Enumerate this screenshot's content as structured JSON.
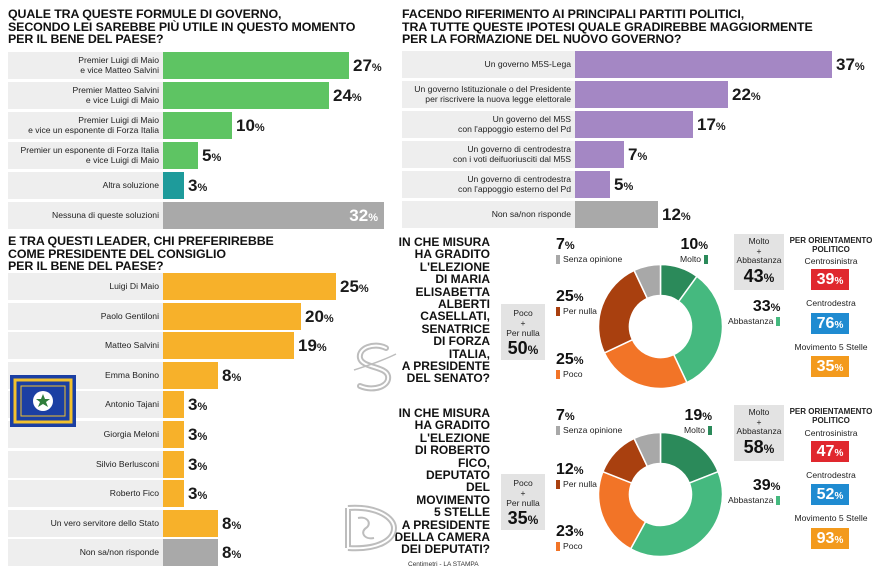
{
  "colors": {
    "green": "#5ec463",
    "teal": "#1e9b9b",
    "gray": "#a9a9a9",
    "purple": "#a487c4",
    "orange": "#f7b12a",
    "row_bg": "#eeeeee",
    "donut_dark_green": "#2b8a5a",
    "donut_green": "#45b97f",
    "donut_brown": "#a9400f",
    "donut_orange": "#f27427",
    "donut_gray": "#a8a8a8",
    "centrosinistra": "#e0282e",
    "centrodestra": "#1f8bd1",
    "m5s": "#f39a1d"
  },
  "chart_data": [
    {
      "type": "bar",
      "orientation": "horizontal",
      "title": "QUALE TRA QUESTE FORMULE DI GOVERNO, SECONDO LEI SAREBBE PIÙ UTILE IN QUESTO MOMENTO PER IL BENE DEL PAESE?",
      "title_lines": [
        "QUALE TRA QUESTE FORMULE DI GOVERNO,",
        "SECONDO LEI SAREBBE PIÙ UTILE IN QUESTO MOMENTO",
        "PER IL BENE DEL PAESE?"
      ],
      "unit": "%",
      "xlim": [
        0,
        40
      ],
      "categories": [
        "Premier Luigi di Maio\ne vice Matteo Salvini",
        "Premier Matteo Salvini\ne vice Luigi di Maio",
        "Premier Luigi di Maio\ne vice un esponente di Forza Italia",
        "Premier un esponente di Forza Italia\ne vice Luigi di Maio",
        "Altra soluzione",
        "Nessuna di queste soluzioni"
      ],
      "values": [
        27,
        24,
        10,
        5,
        3,
        32
      ],
      "bar_colors": [
        "green",
        "green",
        "green",
        "green",
        "teal",
        "gray"
      ]
    },
    {
      "type": "bar",
      "orientation": "horizontal",
      "title": "FACENDO RIFERIMENTO AI PRINCIPALI PARTITI POLITICI, TRA TUTTE QUESTE IPOTESI QUALE GRADIREBBE MAGGIORMENTE PER LA FORMAZIONE DEL NUOVO GOVERNO?",
      "title_lines": [
        "FACENDO RIFERIMENTO AI PRINCIPALI PARTITI POLITICI,",
        "TRA TUTTE QUESTE IPOTESI QUALE GRADIREBBE MAGGIORMENTE",
        "PER LA FORMAZIONE DEL NUOVO GOVERNO?"
      ],
      "unit": "%",
      "xlim": [
        0,
        40
      ],
      "categories": [
        "Un governo M5S-Lega",
        "Un governo Istituzionale o del Presidente\nper riscrivere la nuova legge elettorale",
        "Un governo del M5S\ncon l'appoggio esterno del Pd",
        "Un governo di centrodestra\ncon i voti deifuoriusciti dal M5S",
        "Un governo di centrodestra\ncon l'appoggio esterno del Pd",
        "Non sa/non risponde"
      ],
      "values": [
        37,
        22,
        17,
        7,
        5,
        12
      ],
      "bar_colors": [
        "purple",
        "purple",
        "purple",
        "purple",
        "purple",
        "gray"
      ]
    },
    {
      "type": "bar",
      "orientation": "horizontal",
      "title": "E TRA QUESTI LEADER, CHI PREFERIREBBE COME PRESIDENTE DEL CONSIGLIO PER IL BENE DEL PAESE?",
      "title_lines": [
        "E TRA QUESTI LEADER, CHI PREFERIREBBE",
        "COME PRESIDENTE DEL CONSIGLIO",
        "PER IL BENE DEL PAESE?"
      ],
      "unit": "%",
      "xlim": [
        0,
        40
      ],
      "categories": [
        "Luigi Di Maio",
        "Paolo Gentiloni",
        "Matteo Salvini",
        "Emma Bonino",
        "Antonio Tajani",
        "Giorgia Meloni",
        "Silvio Berlusconi",
        "Roberto Fico",
        "Un vero servitore dello Stato",
        "Non sa/non risponde"
      ],
      "values": [
        25,
        20,
        19,
        8,
        3,
        3,
        3,
        3,
        8,
        8
      ],
      "bar_colors": [
        "orange",
        "orange",
        "orange",
        "orange",
        "orange",
        "orange",
        "orange",
        "orange",
        "orange",
        "gray"
      ]
    },
    {
      "type": "pie",
      "variant": "donut",
      "title": "IN CHE MISURA HA GRADITO L'ELEZIONE DI MARIA ELISABETTA ALBERTI CASELLATI, SENATRICE DI FORZA ITALIA, A PRESIDENTE DEL SENATO?",
      "title_text": "IN CHE MISURA\nHA GRADITO\nL'ELEZIONE\nDI MARIA\nELISABETTA\nALBERTI\nCASELLATI,\nSENATRICE\nDI FORZA ITALIA,\nA PRESIDENTE\nDEL SENATO?",
      "unit": "%",
      "slices": [
        {
          "label": "Molto",
          "value": 10,
          "color": "donut_dark_green"
        },
        {
          "label": "Abbastanza",
          "value": 33,
          "color": "donut_green"
        },
        {
          "label": "Poco",
          "value": 25,
          "color": "donut_orange"
        },
        {
          "label": "Per nulla",
          "value": 25,
          "color": "donut_brown"
        },
        {
          "label": "Senza opinione",
          "value": 7,
          "color": "donut_gray"
        }
      ],
      "poco_per_nulla": {
        "label": "Poco\n+\nPer nulla",
        "value": 50
      },
      "molto_abbastanza": {
        "label": "Molto\n+\nAbbastanza",
        "value": 43
      },
      "orientamento": {
        "title": "PER ORIENTAMENTO\nPOLITICO",
        "groups": [
          {
            "name": "Centrosinistra",
            "value": 39,
            "color": "centrosinistra"
          },
          {
            "name": "Centrodestra",
            "value": 76,
            "color": "centrodestra"
          },
          {
            "name": "Movimento 5 Stelle",
            "value": 35,
            "color": "m5s"
          }
        ]
      }
    },
    {
      "type": "pie",
      "variant": "donut",
      "title": "IN CHE MISURA HA GRADITO L'ELEZIONE DI ROBERTO FICO, DEPUTATO DEL MOVIMENTO 5 STELLE A PRESIDENTE DELLA CAMERA DEI DEPUTATI?",
      "title_text": "IN CHE MISURA\nHA GRADITO\nL'ELEZIONE\nDI ROBERTO FICO,\nDEPUTATO\nDEL MOVIMENTO\n5 STELLE\nA PRESIDENTE\nDELLA CAMERA\nDEI DEPUTATI?",
      "unit": "%",
      "slices": [
        {
          "label": "Molto",
          "value": 19,
          "color": "donut_dark_green"
        },
        {
          "label": "Abbastanza",
          "value": 39,
          "color": "donut_green"
        },
        {
          "label": "Poco",
          "value": 23,
          "color": "donut_orange"
        },
        {
          "label": "Per nulla",
          "value": 12,
          "color": "donut_brown"
        },
        {
          "label": "Senza opinione",
          "value": 7,
          "color": "donut_gray"
        }
      ],
      "poco_per_nulla": {
        "label": "Poco\n+\nPer nulla",
        "value": 35
      },
      "molto_abbastanza": {
        "label": "Molto\n+\nAbbastanza",
        "value": 58
      },
      "orientamento": {
        "title": "PER ORIENTAMENTO\nPOLITICO",
        "groups": [
          {
            "name": "Centrosinistra",
            "value": 47,
            "color": "centrosinistra"
          },
          {
            "name": "Centrodestra",
            "value": 52,
            "color": "centrodestra"
          },
          {
            "name": "Movimento 5 Stelle",
            "value": 93,
            "color": "m5s"
          }
        ]
      }
    }
  ],
  "footer": {
    "source": "Centimetri - LA STAMPA"
  },
  "icons": {
    "flag": "presidential-flag-icon",
    "senate": "senate-emblem-icon",
    "camera": "camera-emblem-icon"
  }
}
